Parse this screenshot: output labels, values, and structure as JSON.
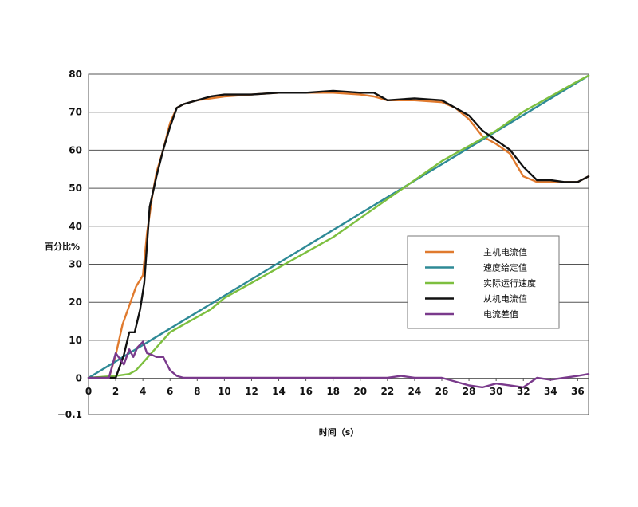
{
  "chart_data": {
    "type": "line",
    "xlabel": "时间（s）",
    "ylabel": "百分比%",
    "xlim": [
      0,
      36.8
    ],
    "ylim": [
      -0.1,
      80
    ],
    "y_axis_note": "bottom gridline labelled -0.1; remaining ticks evenly spaced",
    "x_ticks": [
      "0",
      "2",
      "4",
      "6",
      "8",
      "10",
      "12",
      "14",
      "16",
      "18",
      "20",
      "22",
      "24",
      "26",
      "28",
      "30",
      "32",
      "34",
      "36"
    ],
    "y_ticks": [
      "80",
      "70",
      "60",
      "50",
      "40",
      "30",
      "20",
      "10",
      "0",
      "−0.1"
    ],
    "grid": "horizontal",
    "legend_position": "right-center",
    "series": [
      {
        "name": "主机电流值",
        "color": "#e07a2e",
        "x": [
          0,
          0.5,
          1.5,
          2.0,
          2.5,
          3.0,
          3.5,
          4.0,
          4.3,
          4.7,
          5.0,
          5.5,
          6.0,
          6.5,
          7.0,
          8.0,
          9.0,
          10,
          12,
          14,
          16,
          18,
          20,
          21,
          22,
          24,
          26,
          27,
          28,
          29,
          30,
          31,
          32,
          33,
          34,
          35,
          36,
          36.8
        ],
        "y": [
          0,
          0,
          0,
          6,
          14,
          19,
          24,
          27,
          38,
          48,
          54,
          60,
          67,
          71,
          72,
          73,
          73.5,
          74,
          74.5,
          75,
          75,
          75,
          74.5,
          74,
          73,
          73,
          72.5,
          71,
          68,
          63.5,
          61.5,
          59,
          53,
          51.5,
          51.5,
          51.5,
          51.5,
          53
        ]
      },
      {
        "name": "速度给定值",
        "color": "#2e8a96",
        "x": [
          0,
          36.8
        ],
        "y": [
          0,
          79.5
        ]
      },
      {
        "name": "实际运行速度",
        "color": "#7dbf3f",
        "x": [
          0,
          2,
          3,
          3.5,
          4.0,
          4.5,
          5.0,
          5.5,
          6,
          7,
          8,
          9,
          10,
          11,
          12,
          14,
          16,
          18,
          20,
          22,
          24,
          26,
          28,
          30,
          32,
          34,
          36,
          36.8
        ],
        "y": [
          0,
          0.5,
          1,
          2,
          4,
          6,
          8,
          10,
          12,
          14,
          16,
          18,
          21,
          23,
          25,
          29,
          33,
          37,
          42,
          47,
          52,
          57,
          61,
          65,
          70,
          74,
          78,
          79.5
        ]
      },
      {
        "name": "从机电流值",
        "color": "#111111",
        "x": [
          0,
          2.0,
          2.6,
          3.0,
          3.4,
          3.8,
          4.1,
          4.5,
          5.0,
          5.5,
          6.0,
          6.5,
          7.0,
          8.0,
          9.0,
          10,
          12,
          14,
          16,
          18,
          20,
          21,
          22,
          24,
          26,
          27,
          28,
          29,
          30,
          31,
          32,
          33,
          34,
          35,
          36,
          36.8
        ],
        "y": [
          0,
          0,
          6,
          12,
          12,
          18,
          25,
          45,
          53,
          60,
          66,
          71,
          72,
          73,
          74,
          74.5,
          74.5,
          75,
          75,
          75.5,
          75,
          75,
          73,
          73.5,
          73,
          71,
          69,
          65,
          62.5,
          60,
          55.5,
          52,
          52,
          51.5,
          51.5,
          53
        ]
      },
      {
        "name": "电流差值",
        "color": "#7a3a8c",
        "x": [
          0,
          1.0,
          1.5,
          2.0,
          2.3,
          2.6,
          3.0,
          3.3,
          3.6,
          4.0,
          4.3,
          4.7,
          5.0,
          5.5,
          6.0,
          6.5,
          7.0,
          8,
          10,
          12,
          14,
          16,
          18,
          20,
          22,
          23,
          24,
          26,
          28,
          29,
          30,
          31,
          32,
          33,
          34,
          35,
          36,
          36.8
        ],
        "y": [
          0,
          0,
          0,
          6.5,
          5,
          3.5,
          7.5,
          5.5,
          8,
          9.5,
          6.5,
          6,
          5.5,
          5.5,
          2,
          0.5,
          0,
          0,
          0,
          0,
          0,
          0,
          0,
          0,
          0,
          0.5,
          0,
          0,
          -2,
          -2.5,
          -1.5,
          -2,
          -2.5,
          0,
          -0.5,
          0,
          0.5,
          1
        ]
      }
    ]
  }
}
